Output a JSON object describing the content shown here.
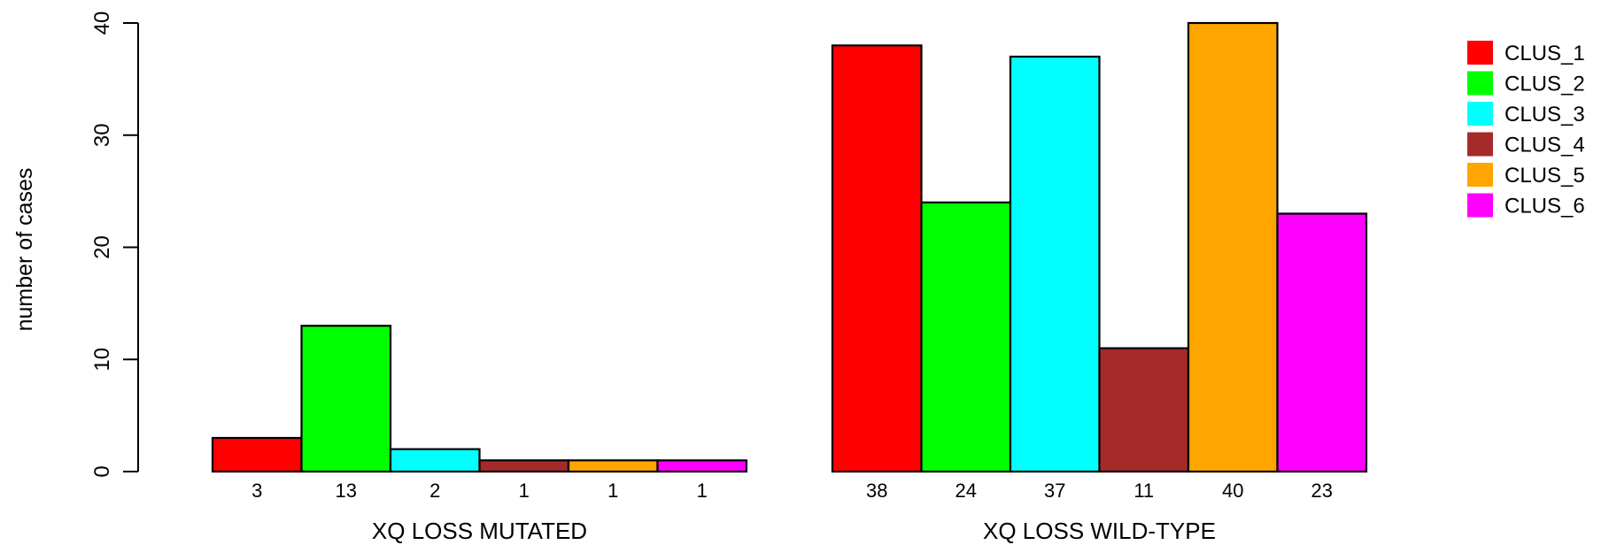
{
  "chart_data": {
    "type": "bar",
    "ylabel": "number of cases",
    "ylim": [
      0,
      40
    ],
    "yticks": [
      0,
      10,
      20,
      30,
      40
    ],
    "grid": false,
    "legend_position": "top-right",
    "groups": [
      {
        "label": "XQ LOSS MUTATED",
        "values": [
          3,
          13,
          2,
          1,
          1,
          1
        ]
      },
      {
        "label": "XQ LOSS WILD-TYPE",
        "values": [
          38,
          24,
          37,
          11,
          40,
          23
        ]
      }
    ],
    "series": [
      {
        "name": "CLUS_1",
        "color": "#ff0000"
      },
      {
        "name": "CLUS_2",
        "color": "#00ff00"
      },
      {
        "name": "CLUS_3",
        "color": "#00ffff"
      },
      {
        "name": "CLUS_4",
        "color": "#a52a2a"
      },
      {
        "name": "CLUS_5",
        "color": "#ffa500"
      },
      {
        "name": "CLUS_6",
        "color": "#ff00ff"
      }
    ]
  }
}
